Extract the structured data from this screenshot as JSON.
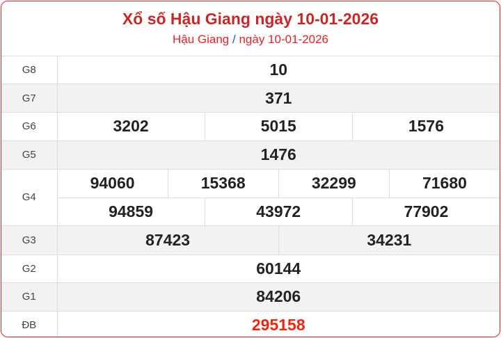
{
  "header": {
    "title": "Xổ số Hậu Giang ngày 10-01-2026",
    "breadcrumb": {
      "province": "Hậu Giang",
      "separator": "/",
      "date": "ngày 10-01-2026"
    }
  },
  "results": {
    "G8": {
      "label": "G8",
      "values": [
        "10"
      ]
    },
    "G7": {
      "label": "G7",
      "values": [
        "371"
      ]
    },
    "G6": {
      "label": "G6",
      "values": [
        "3202",
        "5015",
        "1576"
      ]
    },
    "G5": {
      "label": "G5",
      "values": [
        "1476"
      ]
    },
    "G4": {
      "label": "G4",
      "values": [
        "94060",
        "15368",
        "32299",
        "71680",
        "94859",
        "43972",
        "77902"
      ]
    },
    "G3": {
      "label": "G3",
      "values": [
        "87423",
        "34231"
      ]
    },
    "G2": {
      "label": "G2",
      "values": [
        "60144"
      ]
    },
    "G1": {
      "label": "G1",
      "values": [
        "84206"
      ]
    },
    "DB": {
      "label": "ĐB",
      "values": [
        "295158"
      ]
    }
  },
  "colors": {
    "title": "#c62828",
    "border": "#e8202a",
    "special_prize": "#f0250f"
  }
}
